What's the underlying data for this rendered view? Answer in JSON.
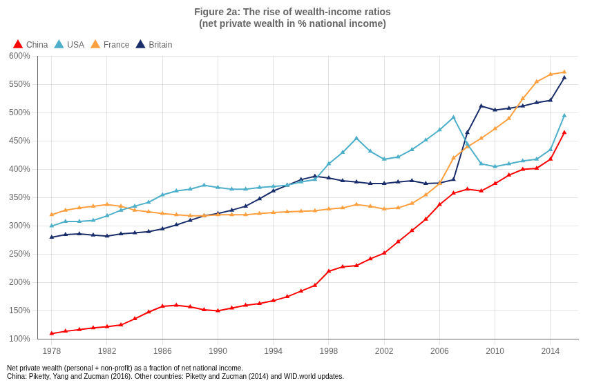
{
  "chart_data": {
    "type": "line",
    "title": "Figure 2a: The rise of wealth-income ratios",
    "subtitle": "(net private wealth in % national income)",
    "footnotes": [
      "Net private wealth (personal + non-profit) as a fraction of net national income.",
      "China: Piketty, Yang and Zucman (2016). Other countries: Piketty and Zucman (2014) and WID.world updates."
    ],
    "x": [
      1978,
      1979,
      1980,
      1981,
      1982,
      1983,
      1984,
      1985,
      1986,
      1987,
      1988,
      1989,
      1990,
      1991,
      1992,
      1993,
      1994,
      1995,
      1996,
      1997,
      1998,
      1999,
      2000,
      2001,
      2002,
      2003,
      2004,
      2005,
      2006,
      2007,
      2008,
      2009,
      2010,
      2011,
      2012,
      2013,
      2014,
      2015
    ],
    "series": [
      {
        "name": "China",
        "color": "#FF0000",
        "marker": "triangle",
        "line_style": "solid",
        "values": [
          1.1,
          1.14,
          1.17,
          1.2,
          1.22,
          1.25,
          1.36,
          1.48,
          1.58,
          1.6,
          1.57,
          1.52,
          1.5,
          1.55,
          1.6,
          1.63,
          1.68,
          1.75,
          1.85,
          1.95,
          2.2,
          2.28,
          2.3,
          2.42,
          2.52,
          2.72,
          2.92,
          3.12,
          3.38,
          3.58,
          3.65,
          3.62,
          3.75,
          3.9,
          4.0,
          4.02,
          4.18,
          4.65
        ]
      },
      {
        "name": "USA",
        "color": "#4DAFCA",
        "marker": "triangle",
        "line_style": "solid",
        "values": [
          3.0,
          3.08,
          3.08,
          3.1,
          3.18,
          3.28,
          3.35,
          3.42,
          3.55,
          3.62,
          3.65,
          3.72,
          3.68,
          3.65,
          3.65,
          3.68,
          3.7,
          3.72,
          3.78,
          3.82,
          4.1,
          4.3,
          4.55,
          4.32,
          4.18,
          4.22,
          4.35,
          4.52,
          4.7,
          4.92,
          4.45,
          4.1,
          4.05,
          4.1,
          4.15,
          4.18,
          4.35,
          4.95
        ]
      },
      {
        "name": "France",
        "color": "#FFA040",
        "marker": "triangle",
        "line_style": "solid",
        "values": [
          3.2,
          3.28,
          3.32,
          3.35,
          3.38,
          3.35,
          3.28,
          3.25,
          3.22,
          3.2,
          3.18,
          3.18,
          3.2,
          3.2,
          3.2,
          3.22,
          3.24,
          3.25,
          3.26,
          3.27,
          3.3,
          3.32,
          3.38,
          3.35,
          3.3,
          3.32,
          3.4,
          3.55,
          3.75,
          4.2,
          4.4,
          4.55,
          4.72,
          4.9,
          5.25,
          5.55,
          5.68,
          5.72
        ]
      },
      {
        "name": "Britain",
        "color": "#1A2E6B",
        "marker": "triangle",
        "line_style": "solid",
        "values": [
          2.8,
          2.85,
          2.86,
          2.84,
          2.82,
          2.86,
          2.88,
          2.9,
          2.95,
          3.02,
          3.1,
          3.18,
          3.22,
          3.28,
          3.35,
          3.48,
          3.62,
          3.72,
          3.82,
          3.88,
          3.85,
          3.8,
          3.78,
          3.75,
          3.75,
          3.78,
          3.8,
          3.75,
          3.76,
          3.82,
          4.65,
          5.12,
          5.05,
          5.08,
          5.12,
          5.18,
          5.22,
          5.62
        ]
      }
    ],
    "xlim": [
      1977,
      2016
    ],
    "xticks": [
      1978,
      1982,
      1986,
      1990,
      1994,
      1998,
      2002,
      2006,
      2010,
      2014
    ],
    "ylim": [
      1.0,
      6.0
    ],
    "yticks": [
      {
        "value": 1.0,
        "label": "100%"
      },
      {
        "value": 1.5,
        "label": "150%"
      },
      {
        "value": 2.0,
        "label": "200%"
      },
      {
        "value": 2.5,
        "label": "250%"
      },
      {
        "value": 3.0,
        "label": "300%"
      },
      {
        "value": 3.5,
        "label": "350%"
      },
      {
        "value": 4.0,
        "label": "400%"
      },
      {
        "value": 4.5,
        "label": "450%"
      },
      {
        "value": 5.0,
        "label": "500%"
      },
      {
        "value": 5.5,
        "label": "550%"
      },
      {
        "value": 6.0,
        "label": "600%"
      }
    ],
    "grid": true,
    "legend": "upper left"
  }
}
